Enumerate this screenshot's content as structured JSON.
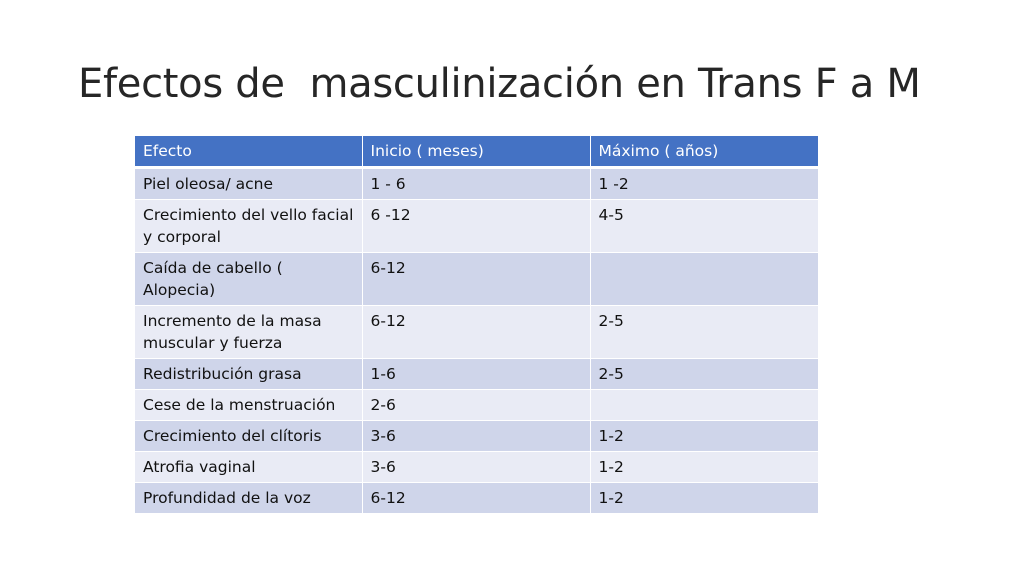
{
  "slide": {
    "title": "Efectos de  masculinización en Trans F a M"
  },
  "table": {
    "headers": [
      "Efecto",
      "Inicio ( meses)",
      "Máximo ( años)"
    ],
    "rows": [
      [
        "Piel oleosa/ acne",
        "1 - 6",
        "1 -2"
      ],
      [
        "Crecimiento del vello facial y corporal",
        "6 -12",
        "4-5"
      ],
      [
        "Caída de cabello ( Alopecia)",
        "6-12",
        ""
      ],
      [
        "Incremento de la masa muscular y fuerza",
        "6-12",
        "2-5"
      ],
      [
        "Redistribución grasa",
        "1-6",
        "2-5"
      ],
      [
        "Cese de la menstruación",
        "2-6",
        ""
      ],
      [
        "Crecimiento del clítoris",
        "3-6",
        "1-2"
      ],
      [
        "Atrofia vaginal",
        "3-6",
        "1-2"
      ],
      [
        "Profundidad de la voz",
        "6-12",
        "1-2"
      ]
    ]
  },
  "colors": {
    "header_bg": "#4472c4",
    "header_text": "#ffffff",
    "row_band_1": "#cfd5ea",
    "row_band_2": "#e9ebf5",
    "title_text": "#262626"
  }
}
